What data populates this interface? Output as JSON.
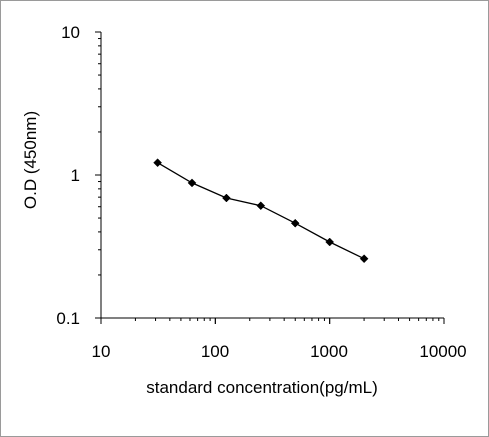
{
  "chart_data": {
    "type": "line",
    "title": "",
    "xlabel": "standard concentration(pg/mL)",
    "ylabel": "O.D (450nm)",
    "x_scale": "log",
    "y_scale": "log",
    "xlim": [
      10,
      10000
    ],
    "ylim": [
      0.1,
      10
    ],
    "x_ticks": [
      "10",
      "100",
      "1000",
      "10000"
    ],
    "y_ticks": [
      "10",
      "1",
      "0.1"
    ],
    "grid": false,
    "legend": "none",
    "series": [
      {
        "x": [
          31.25,
          62.5,
          125,
          250,
          500,
          1000,
          2000
        ],
        "y": [
          1.22,
          0.88,
          0.69,
          0.61,
          0.46,
          0.34,
          0.26
        ],
        "marker": "diamond",
        "color": "#000000"
      }
    ]
  }
}
